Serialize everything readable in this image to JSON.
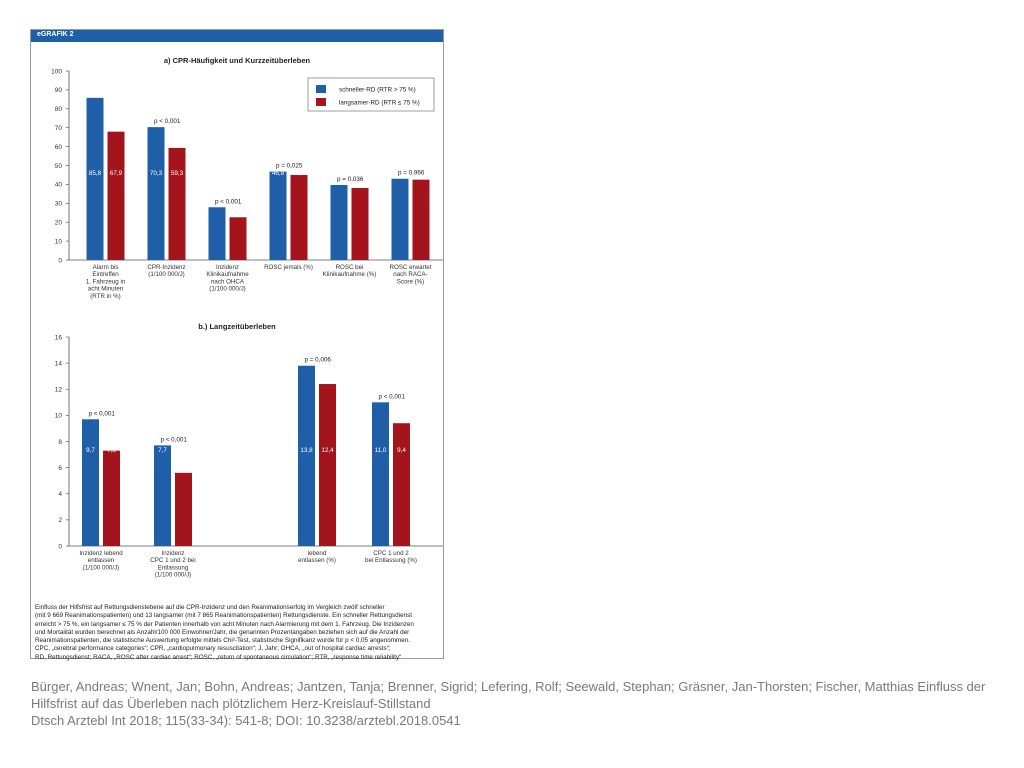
{
  "figure_label": "eGRAFIK 2",
  "chart_data": [
    {
      "type": "bar",
      "title": "a) CPR-Häufigkeit und Kurzzeitüberleben",
      "ylim": [
        0,
        100
      ],
      "yticks": [
        "0",
        "10",
        "20",
        "30",
        "40",
        "50",
        "60",
        "70",
        "80",
        "90",
        "100"
      ],
      "grid": false,
      "legend_position": "top-right",
      "categories": [
        [
          "Alarm bis",
          "Eintreffen",
          "1. Fahrzeug in",
          "acht Minuten",
          "(RTR in %)"
        ],
        [
          "CPR-Inzidenz",
          "(1/100 000/J)"
        ],
        [
          "Inzidenz",
          "Klinikaufnahme",
          "nach OHCA",
          "(1/100 000/J)"
        ],
        [
          "ROSC jemals (%)"
        ],
        [
          "ROSC bei",
          "Klinikaufnahme (%)"
        ],
        [
          "ROSC erwartet",
          "nach RACA-",
          "Score (%)"
        ]
      ],
      "series": [
        {
          "name": "schneller-RD (RTR > 75 %)",
          "color": "#1f5fa8",
          "values": [
            85.8,
            70.3,
            27.9,
            46.8,
            39.7,
            43.0
          ],
          "labels": [
            "85,8",
            "70,3",
            "27,9",
            "46,8",
            "39,7",
            "43,0"
          ]
        },
        {
          "name": "langsamer-RD (RTR ≤ 75 %)",
          "color": "#a3141c",
          "values": [
            67.9,
            59.3,
            22.6,
            45.0,
            38.1,
            42.5
          ],
          "labels": [
            "67,9",
            "59,3",
            "22,6",
            "45,0",
            "38,1",
            "42,5"
          ]
        }
      ],
      "annotations": [
        "",
        "p < 0,001",
        "p < 0,001",
        "p = 0,025",
        "p = 0,036",
        "p = 0,966"
      ]
    },
    {
      "type": "bar",
      "title": "b.) Langzeitüberleben",
      "ylim": [
        0,
        16
      ],
      "yticks": [
        "0",
        "2",
        "4",
        "6",
        "8",
        "10",
        "12",
        "14",
        "16"
      ],
      "grid": false,
      "categories": [
        [
          "Inzidenz lebend",
          "entlassen",
          "(1/100 000/J)"
        ],
        [
          "Inzidenz",
          "CPC 1 und 2 bei",
          "Entlassung",
          "(1/100 000/J)"
        ],
        [
          "lebend",
          "entlassen (%)"
        ],
        [
          "CPC 1 und 2",
          "bei Entlassung (%)"
        ]
      ],
      "series": [
        {
          "name": "schneller-RD (RTR > 75 %)",
          "color": "#1f5fa8",
          "values": [
            9.7,
            7.7,
            13.8,
            11.0
          ],
          "labels": [
            "9,7",
            "7,7",
            "13,8",
            "11,0"
          ]
        },
        {
          "name": "langsamer-RD (RTR ≤ 75 %)",
          "color": "#a3141c",
          "values": [
            7.3,
            5.6,
            12.4,
            9.4
          ],
          "labels": [
            "7,3",
            "5,6",
            "12,4",
            "9,4"
          ]
        }
      ],
      "annotations": [
        "p < 0,001",
        "p < 0,001",
        "p = 0,006",
        "p < 0,001"
      ]
    }
  ],
  "caption_lines": [
    "Einfluss der Hilfsfrist auf Rettungsdienstebene auf die CPR-Inzidenz und den Reanimationserfolg im Vergleich zwölf schneller",
    "(mit 9 669 Reanimationspatienten) und 13 langsamer (mit 7 865 Reanimationspatienten) Rettungsdienste. Ein schneller Rettungsdienst",
    "erreicht > 75 %, ein langsamer ≤ 75 % der Patienten innerhalb von acht Minuten nach Alarmierung mit dem 1. Fahrzeug. Die Inzidenzen",
    "und Mortalität wurden berechnet als Anzahl/100 000 Einwohner/Jahr, die genannten Prozentangaben beziehen sich auf die Anzahl der",
    "Reanimationspatienten, die statistische Auswertung erfolgte mittels Chi²-Test, statistische Signifikanz wurde für p < 0,05 angenommen.",
    "CPC, „cerebral performance categories“; CPR, „cardiopulmonary resuscitation“; J, Jahr; OHCA, „out of hospital cardiac arrests“;",
    "RD, Rettungsdienst; RACA, „ROSC after cardiac arrest“; ROSC, „return of spontaneous circulation“; RTR, „response time reliability“"
  ],
  "citation_lines": [
    "Bürger, Andreas; Wnent, Jan; Bohn, Andreas; Jantzen, Tanja; Brenner, Sigrid; Lefering, Rolf; Seewald, Stephan; Gräsner, Jan-Thorsten; Fischer, Matthias Einfluss der",
    "Hilfsfrist auf das Überleben nach plötzlichem Herz-Kreislauf-Stillstand",
    "Dtsch Arztebl Int 2018; 115(33-34): 541-8; DOI: 10.3238/arztebl.2018.0541"
  ]
}
